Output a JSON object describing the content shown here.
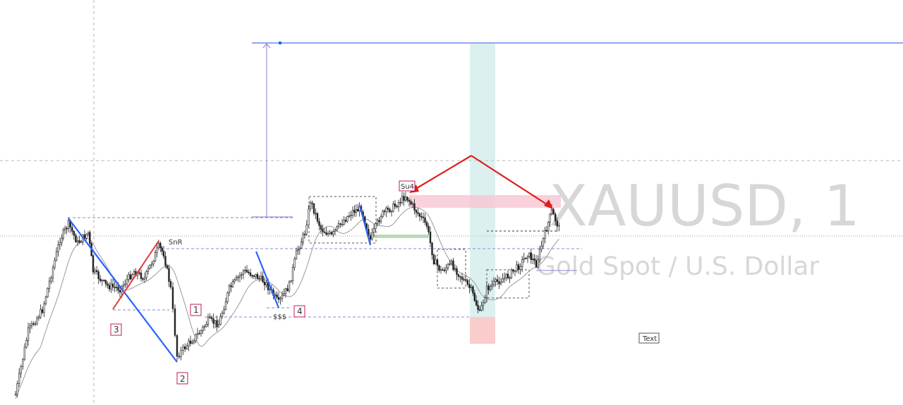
{
  "chart_data": {
    "type": "candlestick",
    "symbol": "XAUUSD, 1",
    "instrument_name": "Gold Spot / U.S. Dollar",
    "annotations": {
      "snr_label": "SnR",
      "su4_label": "Su4",
      "liquidity_label": "$$$",
      "wave_labels": [
        "1",
        "2",
        "3",
        "4"
      ],
      "text_box": "Text"
    },
    "colors": {
      "bull": "#1f1f1f",
      "bear": "#1f1f1f",
      "moving_average": "#9a9a9a",
      "pattern_blue": "#2962ff",
      "pattern_red": "#e53935",
      "arrow_red": "#e11d1d",
      "long_zone": "#b2dfdb",
      "short_zone": "#f8bbbb",
      "supply_zone": "#f6c5d2",
      "horizontal_line": "#6d8cf0"
    }
  }
}
